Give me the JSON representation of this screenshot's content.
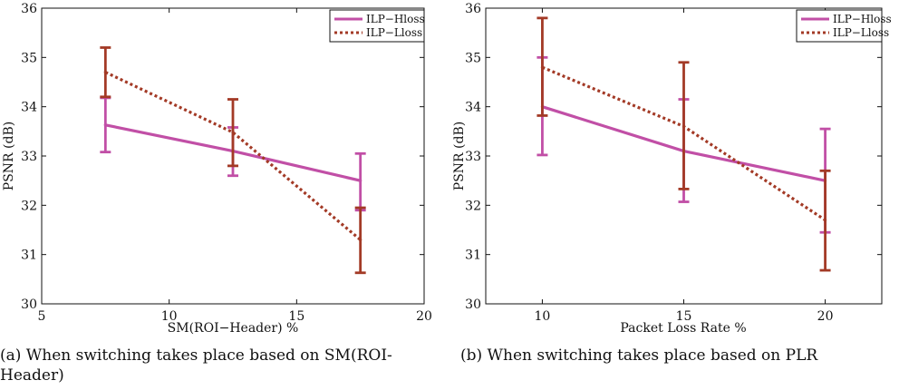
{
  "colors": {
    "hloss": "#c14fa6",
    "lloss": "#a33a26"
  },
  "chart_data": [
    {
      "type": "line",
      "caption": "(a) When switching takes place based on SM(ROI-Header)",
      "xlabel": "SM(ROI−Header) %",
      "ylabel": "PSNR (dB)",
      "xlim": [
        5,
        20
      ],
      "ylim": [
        30,
        36
      ],
      "xticks": [
        5,
        10,
        15,
        20
      ],
      "yticks": [
        30,
        31,
        32,
        33,
        34,
        35,
        36
      ],
      "grid": false,
      "legend_position": "top-right",
      "series": [
        {
          "name": "ILP−Hloss",
          "style": "solid",
          "x": [
            7.5,
            12.5,
            17.5
          ],
          "y": [
            33.63,
            33.1,
            32.5
          ],
          "err_low": [
            33.08,
            32.6,
            31.9
          ],
          "err_high": [
            34.18,
            33.58,
            33.05
          ]
        },
        {
          "name": "ILP−Lloss",
          "style": "dotted",
          "x": [
            7.5,
            12.5,
            17.5
          ],
          "y": [
            34.7,
            33.48,
            31.3
          ],
          "err_low": [
            34.2,
            32.8,
            30.63
          ],
          "err_high": [
            35.2,
            34.15,
            31.95
          ]
        }
      ]
    },
    {
      "type": "line",
      "caption": "(b) When switching takes place based on PLR",
      "xlabel": "Packet Loss Rate %",
      "ylabel": "PSNR (dB)",
      "xlim": [
        8,
        22
      ],
      "ylim": [
        30,
        36
      ],
      "xticks": [
        10,
        15,
        20
      ],
      "yticks": [
        30,
        31,
        32,
        33,
        34,
        35,
        36
      ],
      "grid": false,
      "legend_position": "top-right",
      "series": [
        {
          "name": "ILP−Hloss",
          "style": "solid",
          "x": [
            10,
            15,
            20
          ],
          "y": [
            34.0,
            33.1,
            32.5
          ],
          "err_low": [
            33.02,
            32.07,
            31.45
          ],
          "err_high": [
            35.0,
            34.15,
            33.55
          ]
        },
        {
          "name": "ILP−Lloss",
          "style": "dotted",
          "x": [
            10,
            15,
            20
          ],
          "y": [
            34.8,
            33.6,
            31.7
          ],
          "err_low": [
            33.82,
            32.33,
            30.68
          ],
          "err_high": [
            35.8,
            34.9,
            32.7
          ]
        }
      ]
    }
  ]
}
